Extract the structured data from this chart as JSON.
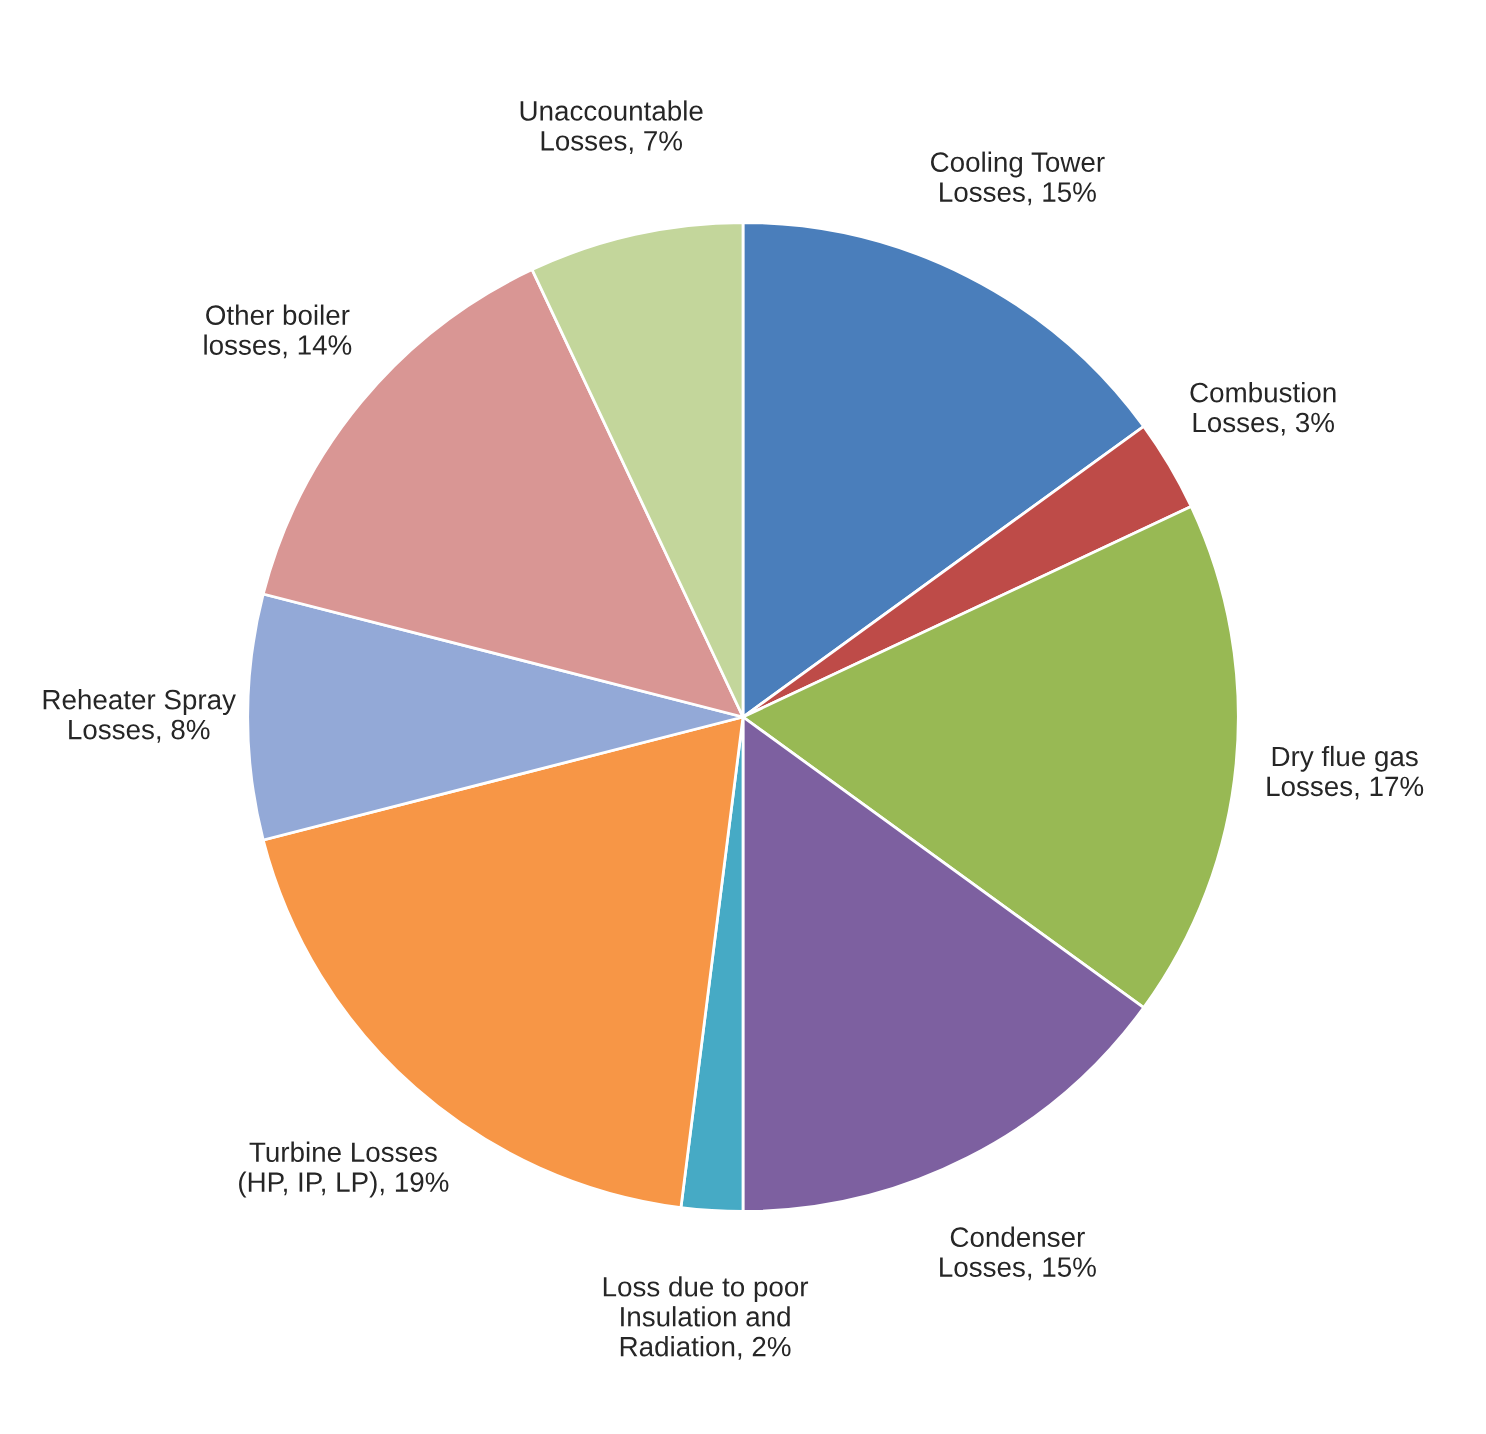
{
  "chart_data": {
    "type": "pie",
    "categories": [
      "Cooling Tower\nLosses, 15%",
      "Combustion\nLosses, 3%",
      "Dry flue gas\nLosses, 17%",
      "Condenser\nLosses, 15%",
      "Loss due to poor\nInsulation and\nRadiation, 2%",
      "Turbine Losses\n(HP, IP, LP), 19%",
      "Reheater Spray\nLosses, 8%",
      "Other boiler\nlosses, 14%",
      "Unaccountable\nLosses, 7%"
    ],
    "values": [
      15,
      3,
      17,
      15,
      2,
      19,
      8,
      14,
      7
    ],
    "colors": [
      "#4a7ebb",
      "#be4b48",
      "#98b954",
      "#7d60a0",
      "#46aac5",
      "#f79646",
      "#93a9d7",
      "#d99694",
      "#c3d69b"
    ]
  }
}
